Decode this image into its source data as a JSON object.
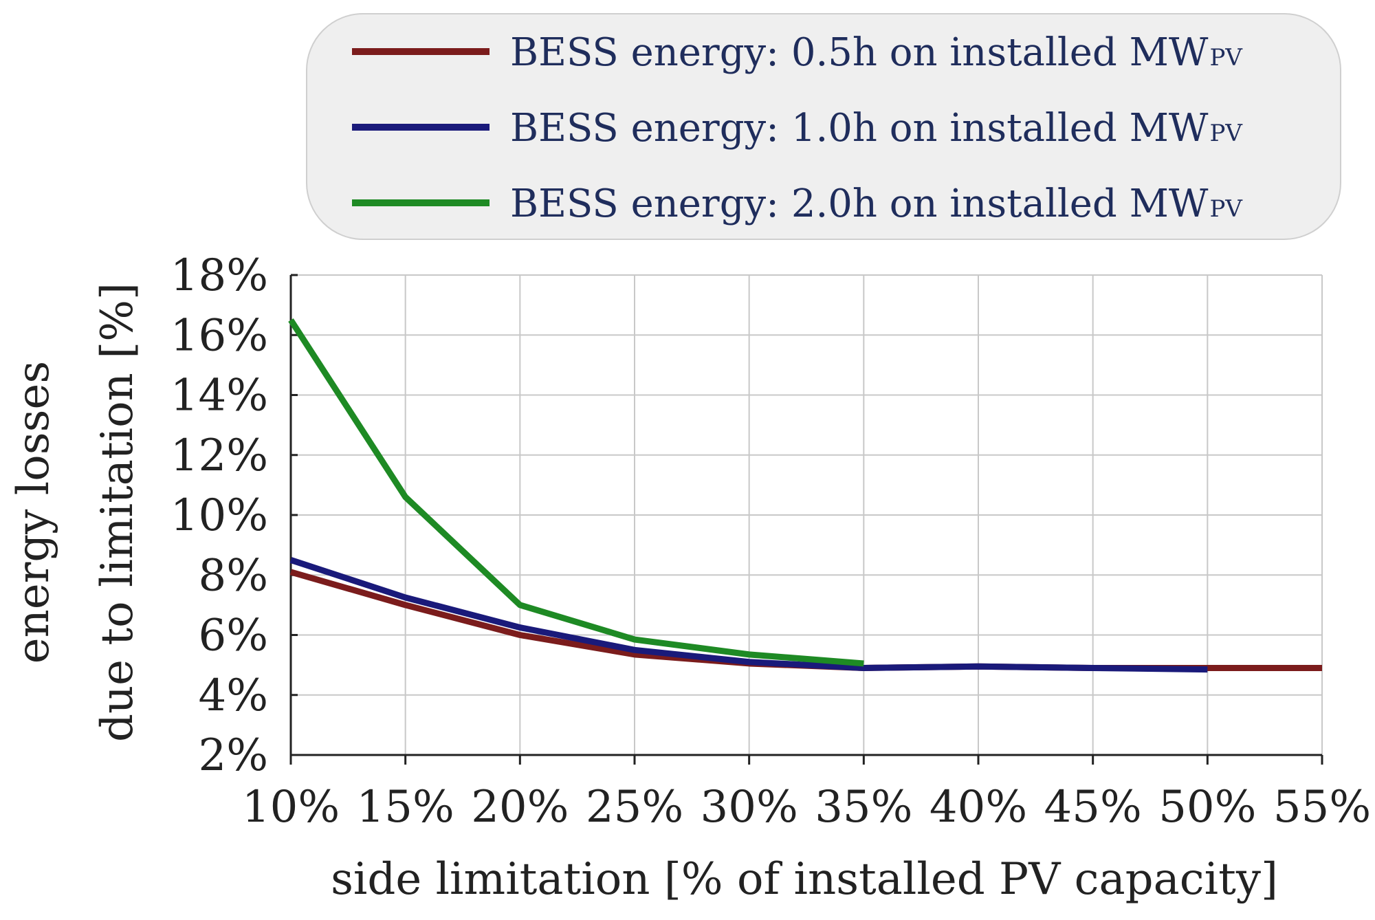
{
  "chart_data": {
    "type": "line",
    "title": "",
    "x": [
      10,
      15,
      20,
      25,
      30,
      35,
      40,
      45,
      50,
      55
    ],
    "x_tick_labels": [
      "10%",
      "15%",
      "20%",
      "25%",
      "30%",
      "35%",
      "40%",
      "45%",
      "50%",
      "55%"
    ],
    "y_tick_values": [
      2,
      4,
      6,
      8,
      10,
      12,
      14,
      16,
      18
    ],
    "y_tick_labels": [
      "2%",
      "4%",
      "6%",
      "8%",
      "10%",
      "12%",
      "14%",
      "16%",
      "18%"
    ],
    "xlim": [
      10,
      55
    ],
    "ylim": [
      2,
      18
    ],
    "xlabel": "side limitation [% of installed PV capacity]",
    "ylabel_line1": "energy losses",
    "ylabel_line2": "due to limitation [%]",
    "grid": true,
    "legend_position": "top-right",
    "series": [
      {
        "name": "BESS energy: 0.5h on installed MW",
        "name_sub": "PV",
        "color": "#7b1c1c",
        "x": [
          10,
          15,
          20,
          25,
          30,
          35,
          40,
          45,
          50,
          55
        ],
        "values": [
          8.1,
          7.0,
          6.0,
          5.35,
          5.05,
          4.9,
          4.95,
          4.9,
          4.9,
          4.9
        ]
      },
      {
        "name": "BESS energy: 1.0h on installed MW",
        "name_sub": "PV",
        "color": "#1a1a7a",
        "x": [
          10,
          15,
          20,
          25,
          30,
          35,
          40,
          45,
          50
        ],
        "values": [
          8.5,
          7.25,
          6.25,
          5.5,
          5.1,
          4.9,
          4.95,
          4.9,
          4.85
        ]
      },
      {
        "name": "BESS energy: 2.0h on installed MW",
        "name_sub": "PV",
        "color": "#1e8a24",
        "x": [
          10,
          15,
          20,
          25,
          30,
          35
        ],
        "values": [
          16.5,
          10.6,
          7.0,
          5.85,
          5.35,
          5.05
        ]
      }
    ]
  }
}
